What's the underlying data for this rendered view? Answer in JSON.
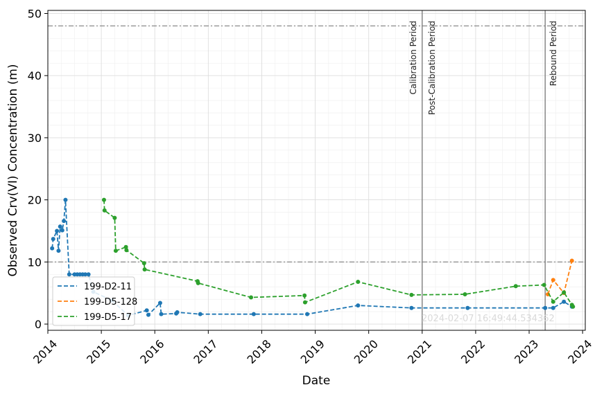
{
  "chart_data": {
    "type": "line",
    "title": "",
    "xlabel": "Date",
    "ylabel": "Observed Crv(VI) Concentration (m)",
    "xlim": [
      2014.0,
      2024.05
    ],
    "ylim": [
      -1,
      50.5
    ],
    "x_ticks": [
      2014,
      2015,
      2016,
      2017,
      2018,
      2019,
      2020,
      2021,
      2022,
      2023,
      2024
    ],
    "x_tick_labels": [
      "2014",
      "2015",
      "2016",
      "2017",
      "2018",
      "2019",
      "2020",
      "2021",
      "2022",
      "2023",
      "2024"
    ],
    "y_ticks": [
      0,
      10,
      20,
      30,
      40,
      50
    ],
    "y_tick_labels": [
      "0",
      "10",
      "20",
      "30",
      "40",
      "50"
    ],
    "grid": true,
    "legend_position": "lower-left",
    "hlines": [
      48,
      10
    ],
    "vlines": [
      {
        "x": 2021.0,
        "labels": [
          "Calibration Period",
          "Post-Calibration Period"
        ]
      },
      {
        "x": 2023.3,
        "labels": [
          "Rebound Period"
        ]
      }
    ],
    "timestamp": "2024-02-07 16:49:44.534362",
    "series": [
      {
        "name": "199-D2-11",
        "color": "#1f77b4",
        "x": [
          2014.08,
          2014.1,
          2014.17,
          2014.2,
          2014.23,
          2014.27,
          2014.3,
          2014.33,
          2014.4,
          2014.5,
          2014.55,
          2014.6,
          2014.65,
          2014.7,
          2014.76,
          2014.85,
          2015.2,
          2015.5,
          2015.85,
          2015.88,
          2016.1,
          2016.12,
          2016.4,
          2016.42,
          2016.85,
          2017.85,
          2018.85,
          2019.8,
          2020.8,
          2021.85,
          2023.3,
          2023.45,
          2023.65,
          2023.8
        ],
        "y": [
          12.2,
          13.7,
          15.0,
          11.8,
          15.7,
          15.1,
          16.6,
          20.0,
          8.0,
          8.0,
          8.0,
          8.0,
          8.0,
          8.0,
          8.0,
          5.2,
          3.8,
          1.4,
          2.2,
          1.5,
          3.4,
          1.6,
          1.7,
          1.9,
          1.6,
          1.6,
          1.6,
          3.0,
          2.6,
          2.6,
          2.6,
          2.6,
          3.6,
          2.8
        ]
      },
      {
        "name": "199-D5-128",
        "color": "#ff7f0e",
        "x": [
          2023.35,
          2023.45,
          2023.65,
          2023.8
        ],
        "y": [
          4.8,
          7.1,
          5.0,
          10.2
        ]
      },
      {
        "name": "199-D5-17",
        "color": "#2ca02c",
        "x": [
          2015.05,
          2015.06,
          2015.25,
          2015.27,
          2015.46,
          2015.47,
          2015.8,
          2015.81,
          2016.8,
          2016.81,
          2017.8,
          2018.8,
          2018.81,
          2019.8,
          2020.8,
          2021.8,
          2022.75,
          2023.28,
          2023.45,
          2023.65,
          2023.8,
          2023.82
        ],
        "y": [
          20.0,
          18.3,
          17.1,
          11.8,
          12.4,
          11.9,
          9.8,
          8.8,
          6.9,
          6.6,
          4.3,
          4.6,
          3.5,
          6.8,
          4.7,
          4.8,
          6.1,
          6.3,
          3.6,
          5.1,
          3.1,
          2.8
        ]
      }
    ]
  }
}
